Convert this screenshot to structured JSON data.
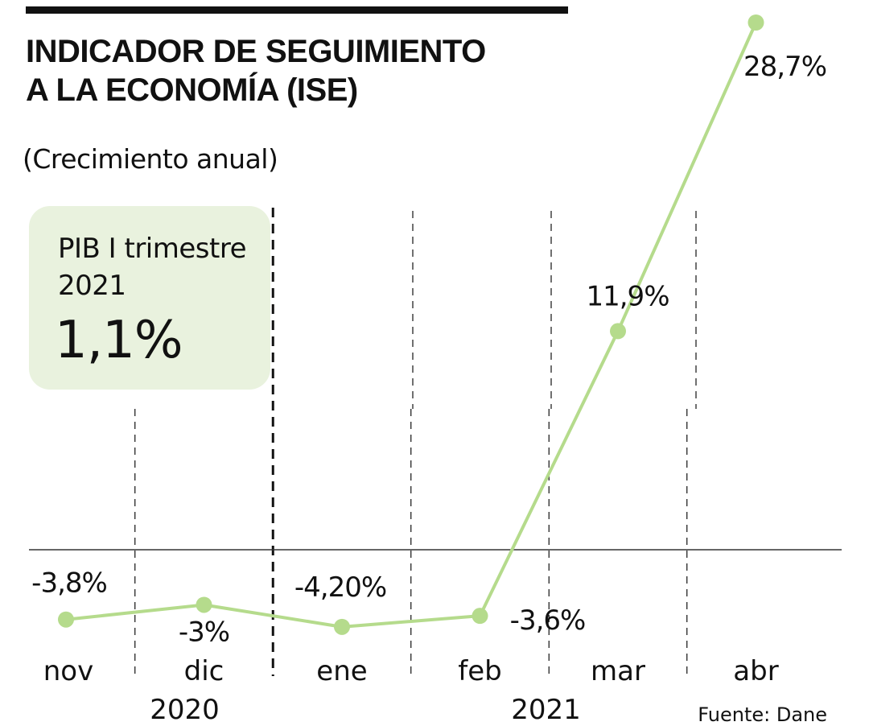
{
  "header": {
    "title_line1": "INDICADOR DE SEGUIMIENTO",
    "title_line2": "A LA ECONOMÍA (ISE)",
    "subtitle": "(Crecimiento anual)"
  },
  "callout": {
    "label_line1": "PIB I trimestre",
    "label_line2": "2021",
    "value": "1,1%"
  },
  "source": "Fuente: Dane",
  "colors": {
    "line": "#b5db8c",
    "callout_bg": "#e9f2de",
    "text": "#111111",
    "title_rule": "#111111"
  },
  "chart_data": {
    "type": "line",
    "title": "INDICADOR DE SEGUIMIENTO A LA ECONOMÍA (ISE)",
    "subtitle": "(Crecimiento anual)",
    "categories": [
      "nov",
      "dic",
      "ene",
      "feb",
      "mar",
      "abr"
    ],
    "year_labels": [
      {
        "label": "2020",
        "under": "dic"
      },
      {
        "label": "2021",
        "under": "feb"
      }
    ],
    "series": [
      {
        "values": [
          -3.8,
          -3.0,
          -4.2,
          -3.6,
          11.9,
          28.7
        ],
        "labels": [
          "-3,8%",
          "-3%",
          "-4,20%",
          "-3,6%",
          "11,9%",
          "28,7%"
        ]
      }
    ],
    "ylim": [
      -5,
      30
    ],
    "baseline": 0,
    "grid": "vertical dashed",
    "year_divider_between": [
      "dic",
      "ene"
    ],
    "xlabel": "",
    "ylabel": ""
  }
}
